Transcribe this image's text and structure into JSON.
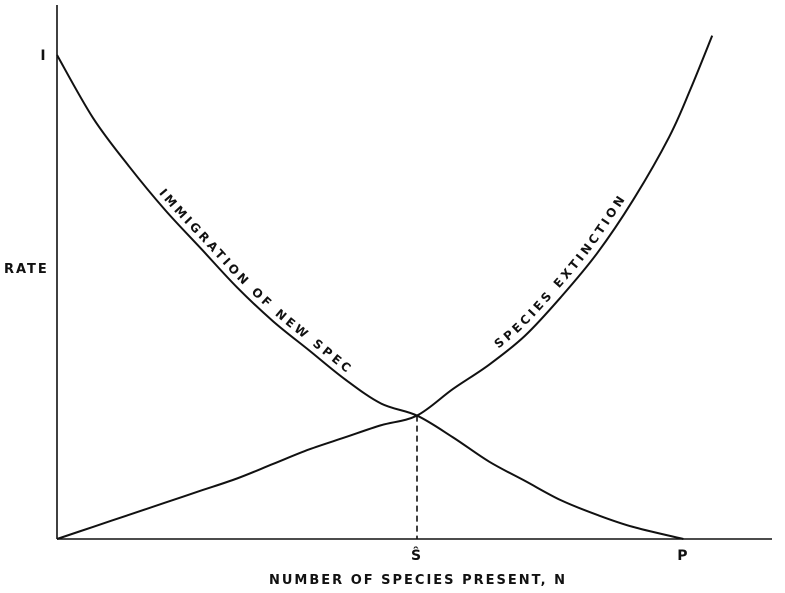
{
  "chart_data": {
    "type": "line",
    "xlabel": "NUMBER OF SPECIES PRESENT, N",
    "ylabel": "RATE",
    "x_ticks": [
      {
        "label": "Ŝ",
        "x": 0.5
      },
      {
        "label": "P",
        "x": 0.87
      }
    ],
    "y_ticks": [
      {
        "label": "I",
        "y": 1.0
      }
    ],
    "xlim": [
      0,
      1
    ],
    "ylim": [
      0,
      1.0
    ],
    "grid": false,
    "legend": "none",
    "series": [
      {
        "name": "IMMIGRATION OF NEW SPECIES",
        "x": [
          0,
          0.05,
          0.1,
          0.15,
          0.2,
          0.25,
          0.3,
          0.35,
          0.4,
          0.45,
          0.5,
          0.55,
          0.6,
          0.65,
          0.7,
          0.75,
          0.8,
          0.87
        ],
        "y": [
          1.0,
          0.87,
          0.77,
          0.68,
          0.6,
          0.52,
          0.45,
          0.39,
          0.33,
          0.28,
          0.255,
          0.21,
          0.16,
          0.12,
          0.08,
          0.05,
          0.025,
          0.0
        ]
      },
      {
        "name": "SPECIES EXTINCTION",
        "x": [
          0,
          0.05,
          0.1,
          0.15,
          0.2,
          0.25,
          0.3,
          0.35,
          0.4,
          0.45,
          0.5,
          0.55,
          0.6,
          0.65,
          0.7,
          0.75,
          0.8,
          0.85,
          0.88,
          0.91
        ],
        "y": [
          0.0,
          0.025,
          0.05,
          0.075,
          0.1,
          0.125,
          0.155,
          0.185,
          0.21,
          0.235,
          0.255,
          0.31,
          0.36,
          0.42,
          0.5,
          0.59,
          0.7,
          0.83,
          0.93,
          1.04
        ]
      }
    ],
    "annotations": [
      {
        "text": "IMMIGRATION OF NEW SPECIES",
        "series": 0
      },
      {
        "text": "SPECIES EXTINCTION",
        "series": 1
      }
    ],
    "equilibrium": {
      "x": 0.5,
      "y": 0.255,
      "style": "dashed-drop-line"
    }
  }
}
